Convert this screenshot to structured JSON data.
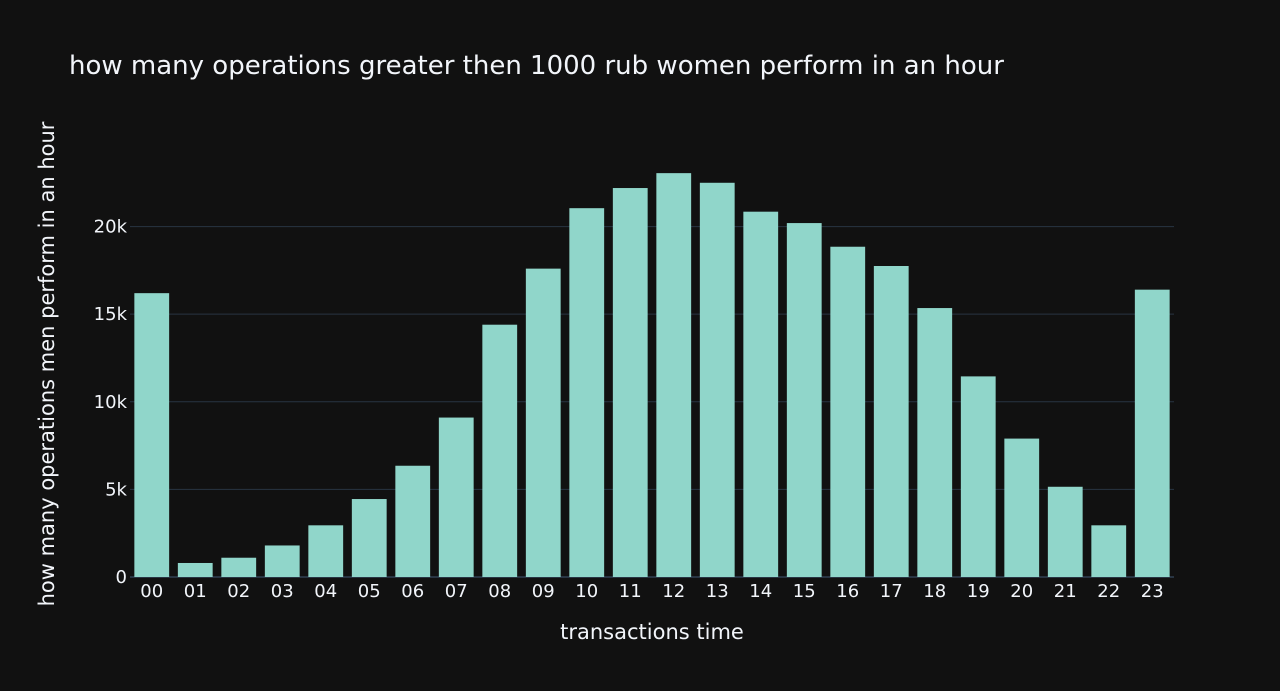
{
  "chart_data": {
    "type": "bar",
    "title": "how many operations greater then 1000 rub women perform in an hour",
    "xlabel": "transactions time",
    "ylabel": "how many operations men perform in an hour",
    "categories": [
      "00",
      "01",
      "02",
      "03",
      "04",
      "05",
      "06",
      "07",
      "08",
      "09",
      "10",
      "11",
      "12",
      "13",
      "14",
      "15",
      "16",
      "17",
      "18",
      "19",
      "20",
      "21",
      "22",
      "23"
    ],
    "values": [
      16200,
      800,
      1100,
      1800,
      2950,
      4450,
      6350,
      9100,
      14400,
      17600,
      21050,
      22200,
      23050,
      22500,
      20850,
      20200,
      18850,
      17750,
      15350,
      11450,
      7900,
      5150,
      2950,
      16400
    ],
    "ylim": [
      0,
      23800
    ],
    "yticks": [
      0,
      5000,
      10000,
      15000,
      20000
    ],
    "ytick_labels": [
      "0",
      "5k",
      "10k",
      "15k",
      "20k"
    ],
    "grid": true,
    "bar_color": "#90d6ca",
    "background_color": "#111111",
    "grid_color": "#283442",
    "text_color": "#f2f5fa"
  }
}
